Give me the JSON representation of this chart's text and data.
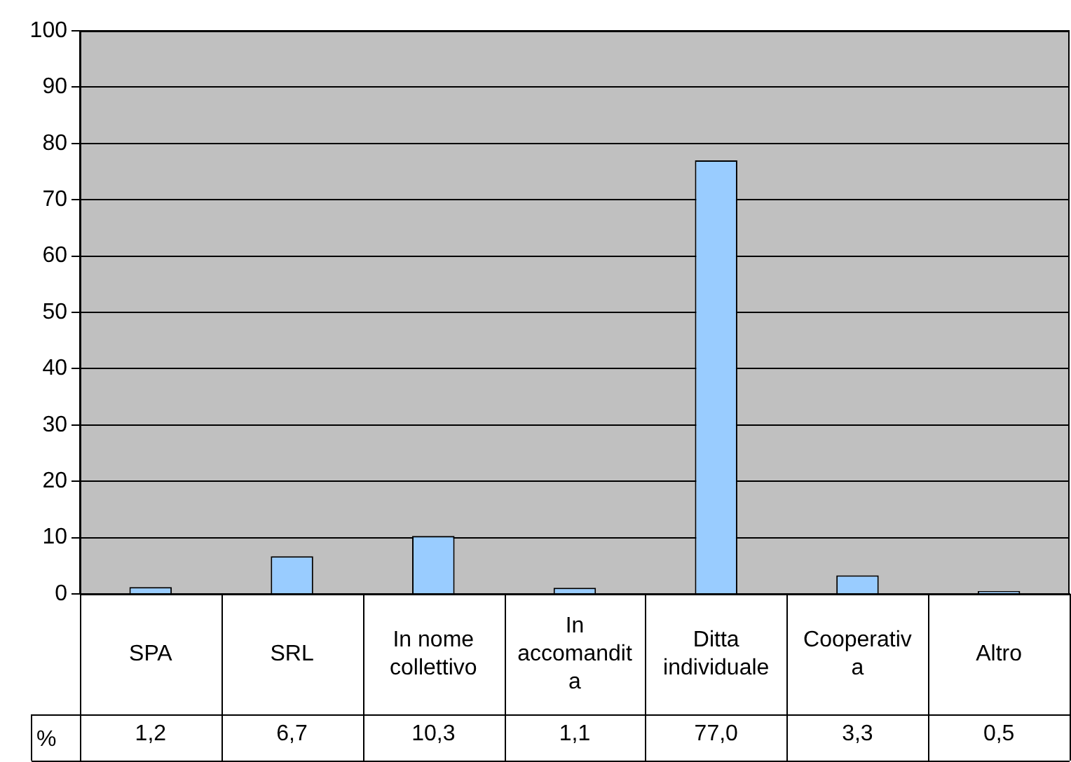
{
  "chart_data": {
    "type": "bar",
    "categories": [
      "SPA",
      "SRL",
      "In nome collettivo",
      "In accomandita",
      "Ditta individuale",
      "Cooperativa",
      "Altro"
    ],
    "series": [
      {
        "name": "%",
        "color": "#99ccff",
        "values": [
          1.2,
          6.7,
          10.3,
          1.1,
          77.0,
          3.3,
          0.5
        ],
        "value_labels": [
          "1,2",
          "6,7",
          "10,3",
          "1,1",
          "77,0",
          "3,3",
          "0,5"
        ]
      }
    ],
    "ylim": [
      0,
      100
    ],
    "yticks": [
      0,
      10,
      20,
      30,
      40,
      50,
      60,
      70,
      80,
      90,
      100
    ],
    "grid": "y",
    "legend": "bottom left"
  }
}
